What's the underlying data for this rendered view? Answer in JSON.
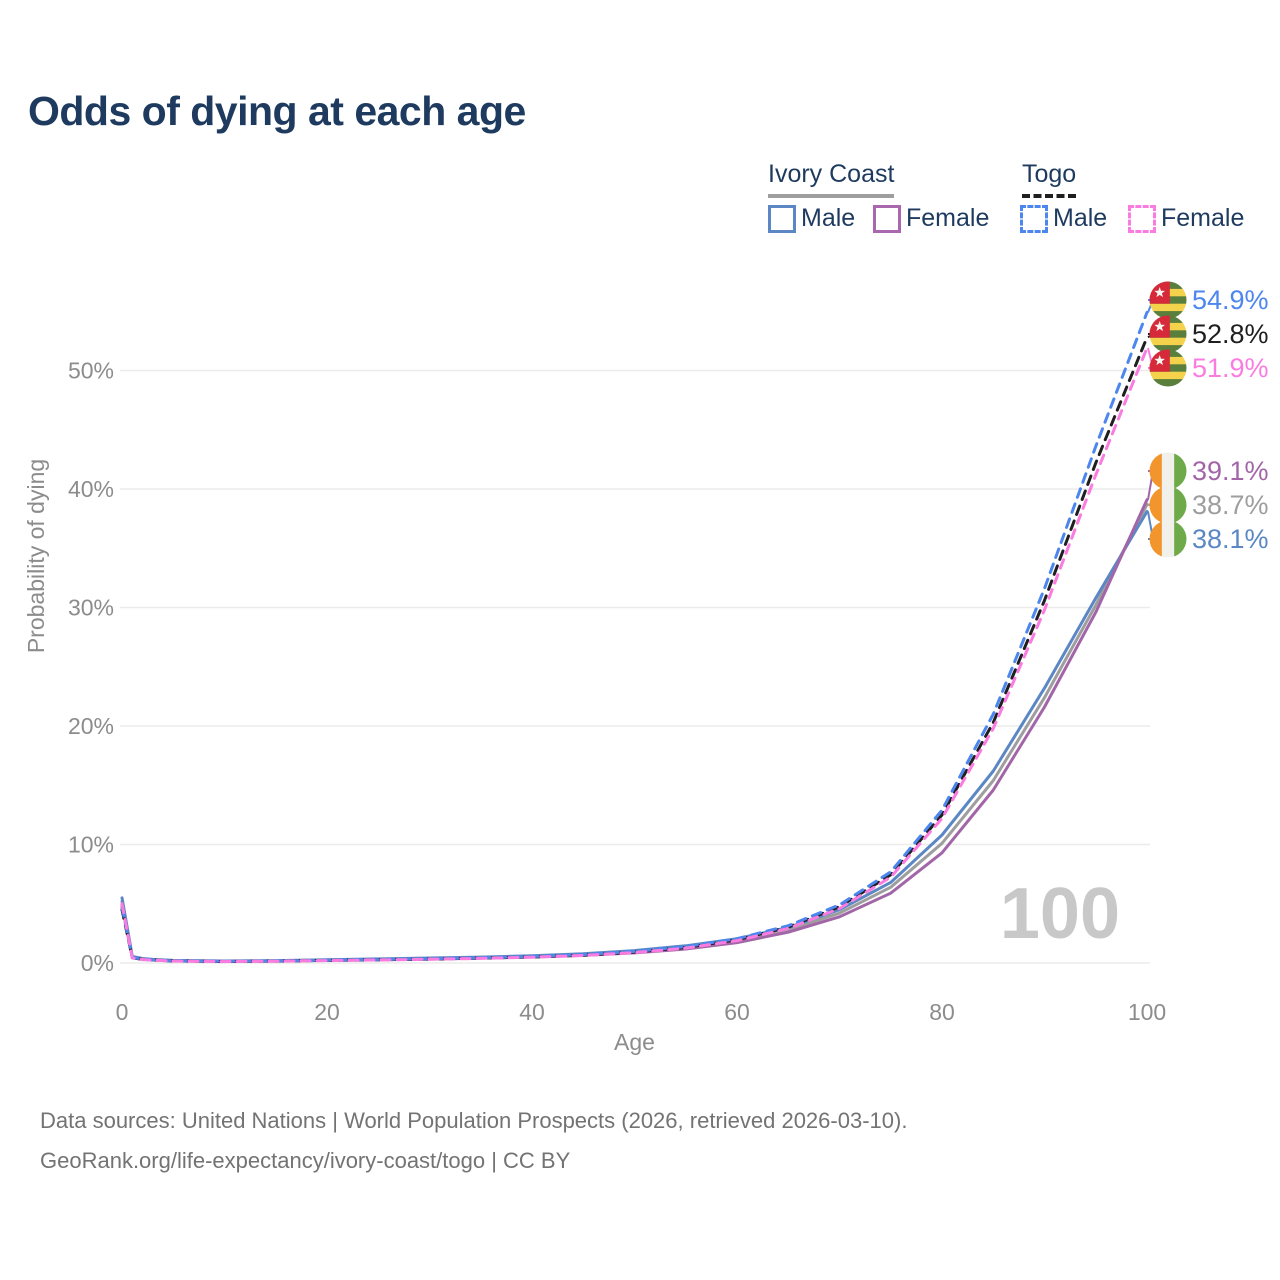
{
  "title": "Odds of dying at each age",
  "legend": {
    "groups": [
      {
        "label": "Ivory Coast",
        "line_style": "solid",
        "underline_color": "#9e9e9e"
      },
      {
        "label": "Togo",
        "line_style": "dashed",
        "underline_color": "#1f1f1f"
      }
    ],
    "items": [
      {
        "group": "Ivory Coast",
        "label": "Male",
        "color": "#5b87c5",
        "dashed": false
      },
      {
        "group": "Ivory Coast",
        "label": "Female",
        "color": "#a968ae",
        "dashed": false
      },
      {
        "group": "Togo",
        "label": "Male",
        "color": "#4c86ee",
        "dashed": true
      },
      {
        "group": "Togo",
        "label": "Female",
        "color": "#fb7ce0",
        "dashed": true
      }
    ]
  },
  "watermark": "100",
  "footer": {
    "line1": "Data sources: United Nations | World Population Prospects (2026, retrieved 2026-03-10).",
    "line2": "GeoRank.org/life-expectancy/ivory-coast/togo | CC BY"
  },
  "flags": {
    "togo": {
      "red": "#d6293a",
      "yellow": "#f5d24b",
      "green": "#5a7e3b",
      "star": "#f7f7f2"
    },
    "ivory_coast": {
      "orange": "#f1952c",
      "white": "#f2f0ea",
      "green": "#6faa4a"
    }
  },
  "chart_data": {
    "type": "line",
    "title": "Odds of dying at each age",
    "xlabel": "Age",
    "ylabel": "Probability of dying",
    "xlim": [
      0,
      100
    ],
    "ylim": [
      0,
      56
    ],
    "grid": "horizontal",
    "legend_position": "top-right",
    "x_ticks": {
      "values": [
        0,
        20,
        40,
        60,
        80,
        100
      ],
      "labels": [
        "0",
        "20",
        "40",
        "60",
        "80",
        "100"
      ]
    },
    "y_ticks": {
      "values": [
        0,
        10,
        20,
        30,
        40,
        50
      ],
      "labels": [
        "0%",
        "10%",
        "20%",
        "30%",
        "40%",
        "50%"
      ]
    },
    "series": [
      {
        "name": "Ivory Coast (both sexes)",
        "country": "ivory_coast",
        "sex": "all",
        "color": "#9e9e9e",
        "dashed": false,
        "end_value": 38.7,
        "end_label": "38.7%",
        "points": [
          [
            0,
            5.2
          ],
          [
            1,
            0.5
          ],
          [
            2,
            0.35
          ],
          [
            3,
            0.28
          ],
          [
            5,
            0.2
          ],
          [
            10,
            0.15
          ],
          [
            15,
            0.18
          ],
          [
            20,
            0.25
          ],
          [
            25,
            0.31
          ],
          [
            30,
            0.38
          ],
          [
            35,
            0.46
          ],
          [
            40,
            0.57
          ],
          [
            45,
            0.72
          ],
          [
            50,
            0.95
          ],
          [
            55,
            1.32
          ],
          [
            60,
            1.9
          ],
          [
            65,
            2.8
          ],
          [
            70,
            4.2
          ],
          [
            75,
            6.4
          ],
          [
            80,
            10.1
          ],
          [
            85,
            15.4
          ],
          [
            90,
            22.4
          ],
          [
            95,
            30.2
          ],
          [
            100,
            38.7
          ]
        ]
      },
      {
        "name": "Ivory Coast Male",
        "country": "ivory_coast",
        "sex": "male",
        "color": "#5b87c5",
        "dashed": false,
        "end_value": 38.1,
        "end_label": "38.1%",
        "points": [
          [
            0,
            5.5
          ],
          [
            1,
            0.55
          ],
          [
            2,
            0.38
          ],
          [
            3,
            0.3
          ],
          [
            5,
            0.22
          ],
          [
            10,
            0.17
          ],
          [
            15,
            0.2
          ],
          [
            20,
            0.28
          ],
          [
            25,
            0.35
          ],
          [
            30,
            0.42
          ],
          [
            35,
            0.5
          ],
          [
            40,
            0.62
          ],
          [
            45,
            0.78
          ],
          [
            50,
            1.05
          ],
          [
            55,
            1.45
          ],
          [
            60,
            2.05
          ],
          [
            65,
            3.0
          ],
          [
            70,
            4.5
          ],
          [
            75,
            6.8
          ],
          [
            80,
            10.8
          ],
          [
            85,
            16.2
          ],
          [
            90,
            23.2
          ],
          [
            95,
            30.8
          ],
          [
            100,
            38.1
          ]
        ]
      },
      {
        "name": "Ivory Coast Female",
        "country": "ivory_coast",
        "sex": "female",
        "color": "#a266a8",
        "dashed": false,
        "end_value": 39.1,
        "end_label": "39.1%",
        "points": [
          [
            0,
            4.9
          ],
          [
            1,
            0.45
          ],
          [
            2,
            0.32
          ],
          [
            3,
            0.26
          ],
          [
            5,
            0.18
          ],
          [
            10,
            0.14
          ],
          [
            15,
            0.16
          ],
          [
            20,
            0.22
          ],
          [
            25,
            0.27
          ],
          [
            30,
            0.33
          ],
          [
            35,
            0.41
          ],
          [
            40,
            0.51
          ],
          [
            45,
            0.64
          ],
          [
            50,
            0.85
          ],
          [
            55,
            1.18
          ],
          [
            60,
            1.72
          ],
          [
            65,
            2.6
          ],
          [
            70,
            3.9
          ],
          [
            75,
            5.9
          ],
          [
            80,
            9.3
          ],
          [
            85,
            14.6
          ],
          [
            90,
            21.6
          ],
          [
            95,
            29.6
          ],
          [
            100,
            39.1
          ]
        ]
      },
      {
        "name": "Togo (both sexes)",
        "country": "togo",
        "sex": "all",
        "color": "#1f1f1f",
        "dashed": true,
        "end_value": 52.8,
        "end_label": "52.8%",
        "points": [
          [
            0,
            4.5
          ],
          [
            1,
            0.44
          ],
          [
            2,
            0.3
          ],
          [
            3,
            0.25
          ],
          [
            5,
            0.17
          ],
          [
            10,
            0.13
          ],
          [
            15,
            0.16
          ],
          [
            20,
            0.22
          ],
          [
            25,
            0.27
          ],
          [
            30,
            0.33
          ],
          [
            35,
            0.41
          ],
          [
            40,
            0.51
          ],
          [
            45,
            0.66
          ],
          [
            50,
            0.92
          ],
          [
            55,
            1.31
          ],
          [
            60,
            1.96
          ],
          [
            65,
            3.03
          ],
          [
            70,
            4.75
          ],
          [
            75,
            7.45
          ],
          [
            80,
            12.5
          ],
          [
            85,
            20.3
          ],
          [
            90,
            30.6
          ],
          [
            95,
            42.2
          ],
          [
            100,
            52.8
          ]
        ]
      },
      {
        "name": "Togo Male",
        "country": "togo",
        "sex": "male",
        "color": "#4c86ee",
        "dashed": true,
        "end_value": 54.9,
        "end_label": "54.9%",
        "points": [
          [
            0,
            4.7
          ],
          [
            1,
            0.46
          ],
          [
            2,
            0.32
          ],
          [
            3,
            0.26
          ],
          [
            5,
            0.18
          ],
          [
            10,
            0.14
          ],
          [
            15,
            0.17
          ],
          [
            20,
            0.23
          ],
          [
            25,
            0.29
          ],
          [
            30,
            0.35
          ],
          [
            35,
            0.43
          ],
          [
            40,
            0.54
          ],
          [
            45,
            0.7
          ],
          [
            50,
            0.97
          ],
          [
            55,
            1.38
          ],
          [
            60,
            2.05
          ],
          [
            65,
            3.15
          ],
          [
            70,
            4.9
          ],
          [
            75,
            7.7
          ],
          [
            80,
            12.9
          ],
          [
            85,
            21.0
          ],
          [
            90,
            31.6
          ],
          [
            95,
            43.6
          ],
          [
            100,
            54.9
          ]
        ]
      },
      {
        "name": "Togo Female",
        "country": "togo",
        "sex": "female",
        "color": "#fb7ce0",
        "dashed": true,
        "end_value": 51.9,
        "end_label": "51.9%",
        "points": [
          [
            0,
            5.0
          ],
          [
            1,
            0.42
          ],
          [
            2,
            0.29
          ],
          [
            3,
            0.24
          ],
          [
            5,
            0.16
          ],
          [
            10,
            0.12
          ],
          [
            15,
            0.15
          ],
          [
            20,
            0.2
          ],
          [
            25,
            0.25
          ],
          [
            30,
            0.31
          ],
          [
            35,
            0.39
          ],
          [
            40,
            0.49
          ],
          [
            45,
            0.63
          ],
          [
            50,
            0.88
          ],
          [
            55,
            1.26
          ],
          [
            60,
            1.88
          ],
          [
            65,
            2.92
          ],
          [
            70,
            4.6
          ],
          [
            75,
            7.25
          ],
          [
            80,
            12.2
          ],
          [
            85,
            19.8
          ],
          [
            90,
            29.8
          ],
          [
            95,
            41.2
          ],
          [
            100,
            51.9
          ]
        ]
      }
    ]
  }
}
